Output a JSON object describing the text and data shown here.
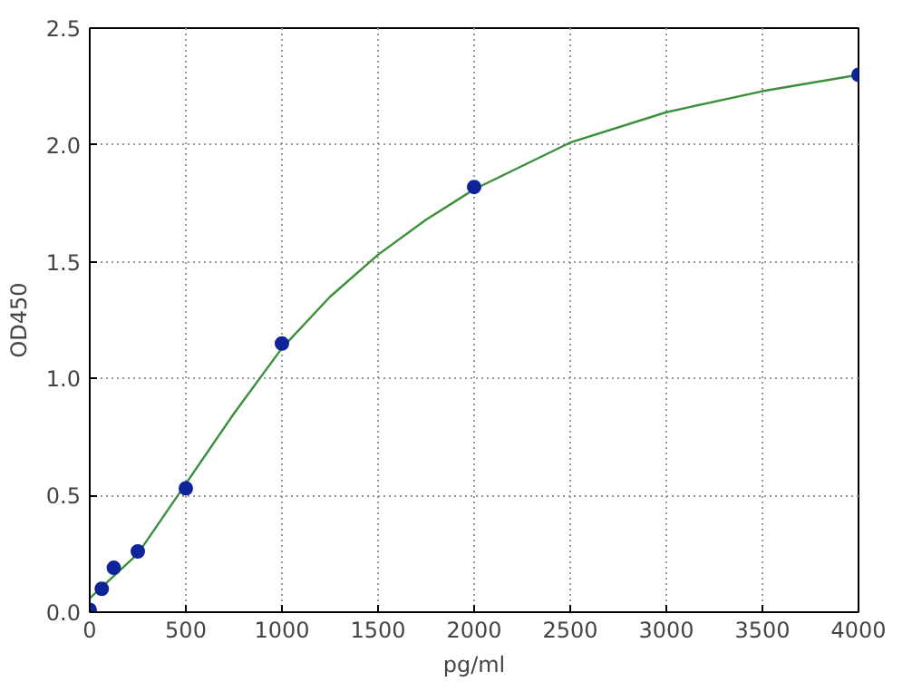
{
  "chart_data": {
    "type": "scatter",
    "xlabel": "pg/ml",
    "ylabel": "OD450",
    "xlim": [
      0,
      4000
    ],
    "xticks": [
      0,
      500,
      1000,
      1500,
      2000,
      2500,
      3000,
      3500,
      4000
    ],
    "ylim": [
      0,
      2.5
    ],
    "yticks": [
      {
        "value": 0,
        "label": "0.0"
      },
      0.5,
      {
        "value": 1,
        "label": "1.0"
      },
      1.5,
      {
        "value": 2,
        "label": "2.0"
      },
      2.5
    ],
    "grid": true,
    "series": [
      {
        "type": "line",
        "color": "#3a8f3a",
        "marker": "none",
        "x": [
          0,
          250,
          500,
          750,
          1000,
          1250,
          1500,
          1750,
          2000,
          2500,
          3000,
          3500,
          4000
        ],
        "values": [
          0.06,
          0.25,
          0.55,
          0.85,
          1.13,
          1.35,
          1.53,
          1.68,
          1.81,
          2.01,
          2.14,
          2.23,
          2.3
        ]
      },
      {
        "color": "#10249a",
        "marker": "circle",
        "x": [
          0,
          62.5,
          125,
          250,
          500,
          1000,
          2000,
          4000
        ],
        "values": [
          0.01,
          0.1,
          0.19,
          0.26,
          0.53,
          1.15,
          1.82,
          2.3
        ]
      }
    ]
  }
}
